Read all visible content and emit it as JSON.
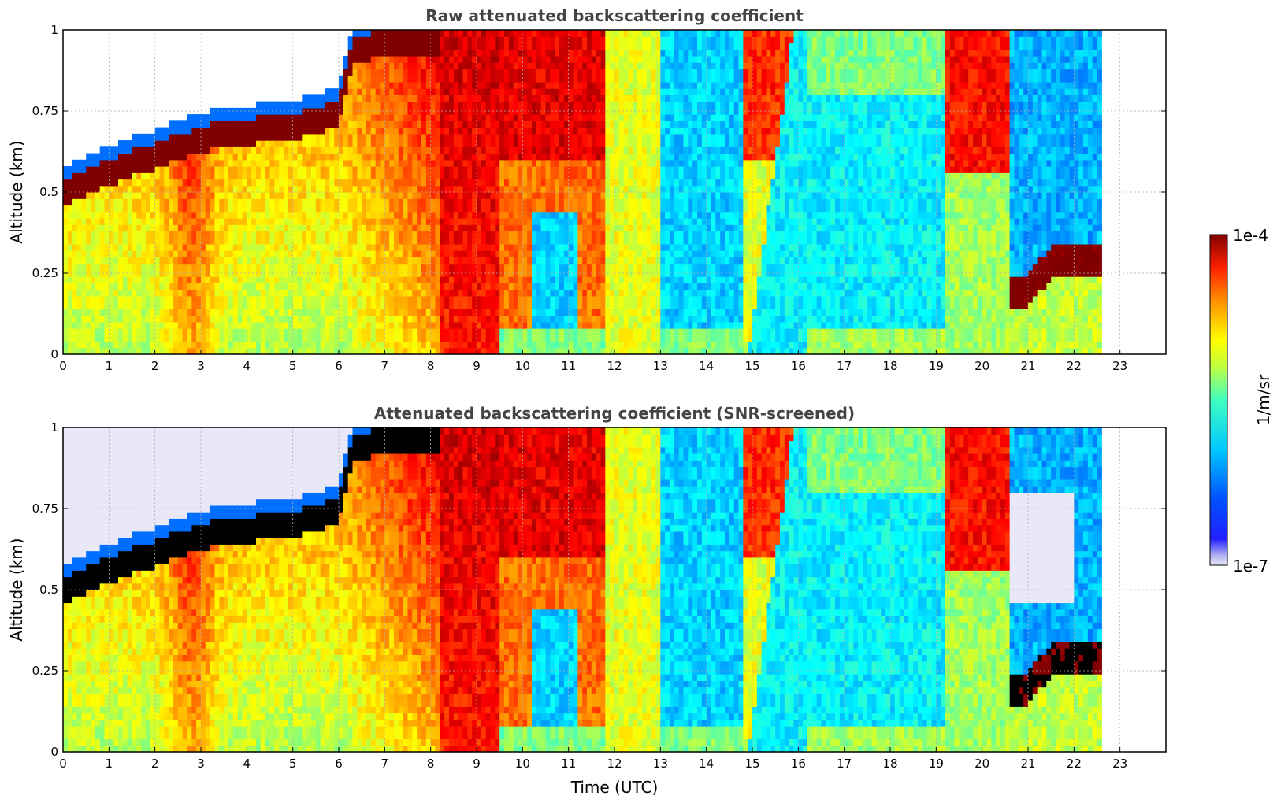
{
  "chart_data": [
    {
      "type": "heatmap",
      "title": "Raw attenuated backscattering coefficient",
      "xlabel": "",
      "ylabel": "Altitude (km)",
      "xlim": [
        0,
        24
      ],
      "ylim": [
        0,
        1
      ],
      "xticks": [
        "0",
        "1",
        "2",
        "3",
        "4",
        "5",
        "6",
        "7",
        "8",
        "9",
        "10",
        "11",
        "12",
        "13",
        "14",
        "15",
        "16",
        "17",
        "18",
        "19",
        "20",
        "21",
        "22",
        "23"
      ],
      "yticks": [
        "0",
        "0.25",
        "0.5",
        "0.75",
        "1"
      ],
      "grid": true,
      "data_end_time": 22.65,
      "screened": false,
      "field_description": "log10 backscatter (1/m/sr) vs time (UTC) and altitude (km)",
      "series": [
        {
          "name": "high-backscatter layer top (km)",
          "x": [
            0,
            0.5,
            1,
            1.5,
            2,
            2.5,
            3,
            3.5,
            4,
            4.5,
            5,
            5.5,
            6,
            6.3,
            6.5,
            7,
            7.5,
            8
          ],
          "values": [
            0.54,
            0.57,
            0.6,
            0.63,
            0.65,
            0.68,
            0.7,
            0.72,
            0.72,
            0.74,
            0.74,
            0.76,
            0.78,
            0.98,
            0.98,
            1.0,
            1.0,
            1.0
          ]
        },
        {
          "name": "low-level layer (km)",
          "x": [
            20.6,
            21,
            21.5,
            22,
            22.65
          ],
          "values": [
            0.18,
            0.2,
            0.28,
            0.28,
            0.3
          ]
        }
      ]
    },
    {
      "type": "heatmap",
      "title": "Attenuated backscattering coefficient (SNR-screened)",
      "xlabel": "Time (UTC)",
      "ylabel": "Altitude (km)",
      "xlim": [
        0,
        24
      ],
      "ylim": [
        0,
        1
      ],
      "xticks": [
        "0",
        "1",
        "2",
        "3",
        "4",
        "5",
        "6",
        "7",
        "8",
        "9",
        "10",
        "11",
        "12",
        "13",
        "14",
        "15",
        "16",
        "17",
        "18",
        "19",
        "20",
        "21",
        "22",
        "23"
      ],
      "yticks": [
        "0",
        "0.25",
        "0.5",
        "0.75",
        "1"
      ],
      "grid": true,
      "data_end_time": 22.65,
      "screened": true,
      "field_description": "same field, saturated cells shown black, low-SNR cells shown pale"
    }
  ],
  "colorbar": {
    "label": "1/m/sr",
    "max_label": "1e-4",
    "min_label": "1e-7",
    "log_min": -7,
    "log_max": -4,
    "colormap": "jet",
    "low_color": "#e8e8f8",
    "saturated_color_raw": "#800000",
    "saturated_color_screened": "#000000"
  }
}
